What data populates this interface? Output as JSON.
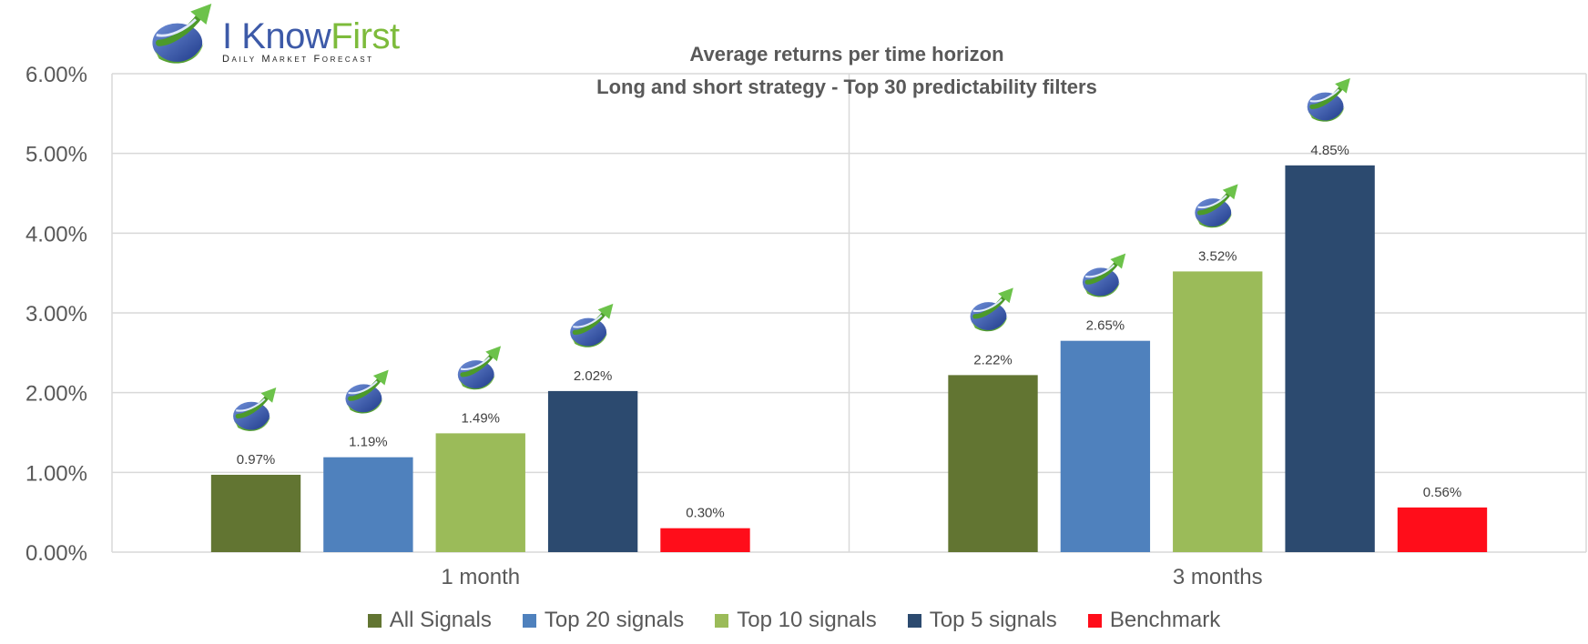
{
  "logo": {
    "name_part1": "I Know",
    "name_part2": "First",
    "tagline": "Daily Market Forecast"
  },
  "chart_data": {
    "type": "bar",
    "title": "Average returns per time horizon",
    "subtitle": "Long and short strategy - Top 30  predictability filters",
    "categories": [
      "1 month",
      "3 months"
    ],
    "series": [
      {
        "name": "All Signals",
        "color": "#627532",
        "values": [
          0.97,
          2.22
        ],
        "labels": [
          "0.97%",
          "2.22%"
        ]
      },
      {
        "name": "Top 20 signals",
        "color": "#4f81bd",
        "values": [
          1.19,
          2.65
        ],
        "labels": [
          "1.19%",
          "2.65%"
        ]
      },
      {
        "name": "Top 10 signals",
        "color": "#9bbb59",
        "values": [
          1.49,
          3.52
        ],
        "labels": [
          "1.49%",
          "3.52%"
        ]
      },
      {
        "name": "Top 5 signals",
        "color": "#2c4a6f",
        "values": [
          2.02,
          4.85
        ],
        "labels": [
          "2.02%",
          "4.85%"
        ]
      },
      {
        "name": "Benchmark",
        "color": "#ff0d1a",
        "values": [
          0.3,
          0.56
        ],
        "labels": [
          "0.30%",
          "0.56%"
        ]
      }
    ],
    "ylim": [
      0,
      6
    ],
    "yticks": [
      0,
      1,
      2,
      3,
      4,
      5,
      6
    ],
    "ytick_labels": [
      "0.00%",
      "1.00%",
      "2.00%",
      "3.00%",
      "4.00%",
      "5.00%",
      "6.00%"
    ],
    "grid": true,
    "legend_position": "bottom",
    "icon_markers": "logo-icon above each bar except Benchmark"
  }
}
